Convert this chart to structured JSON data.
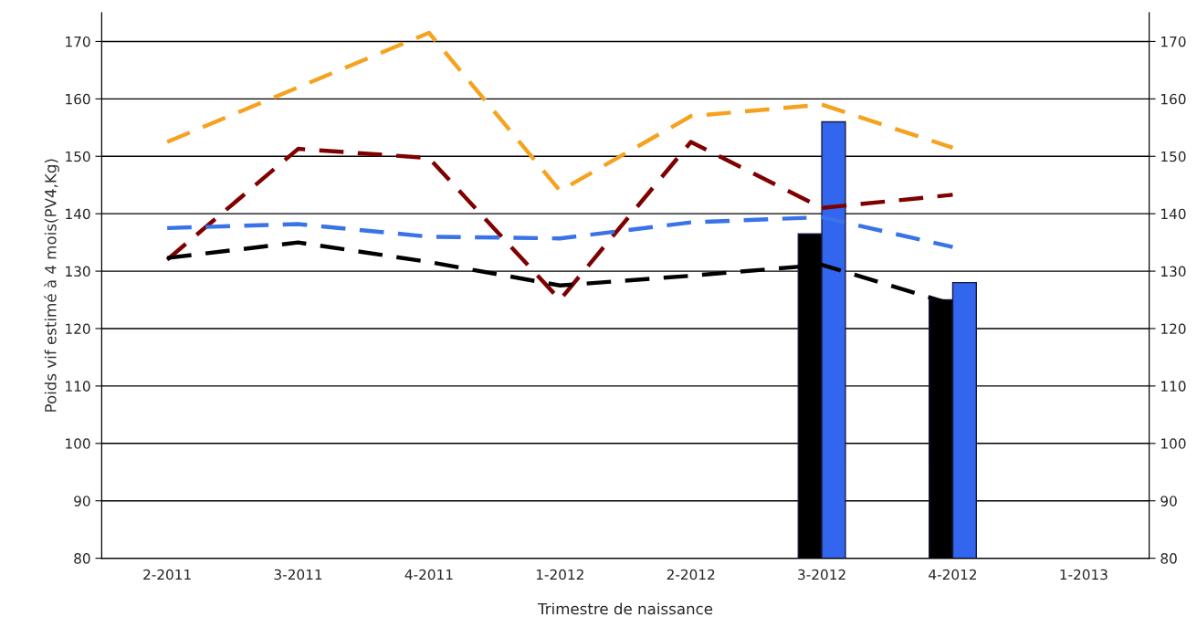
{
  "chart_data": {
    "type": "bar",
    "xlabel": "Trimestre de naissance",
    "ylabel": "Poids vif estimé à 4 mois(PV4,Kg)",
    "categories": [
      "2-2011",
      "3-2011",
      "4-2011",
      "1-2012",
      "2-2012",
      "3-2012",
      "4-2012",
      "1-2013"
    ],
    "series": [
      {
        "color": "#000000",
        "values": [
          null,
          null,
          null,
          null,
          null,
          136.5,
          125,
          null
        ]
      },
      {
        "color": "#3366ee",
        "values": [
          null,
          null,
          null,
          null,
          null,
          156,
          128,
          null
        ]
      },
      {
        "type": "line",
        "color": "#f5a31f",
        "values": [
          152.5,
          162,
          171.5,
          144,
          157,
          159,
          151.5,
          null
        ]
      },
      {
        "type": "line",
        "color": "#7f0000",
        "values": [
          132,
          151.3,
          149.7,
          125,
          152.5,
          141,
          143.3,
          null
        ]
      },
      {
        "type": "line",
        "color": "#3a72e8",
        "values": [
          137.5,
          138.2,
          136,
          135.7,
          138.5,
          139.4,
          134.2,
          null
        ]
      },
      {
        "type": "line",
        "color": "#000000",
        "values": [
          132.3,
          135,
          131.6,
          127.5,
          129.2,
          131.1,
          124.2,
          null
        ]
      }
    ],
    "ylim": [
      80,
      175
    ],
    "yticks": [
      80,
      90,
      100,
      110,
      120,
      130,
      140,
      150,
      160,
      170
    ],
    "y2lim": [
      80,
      175
    ],
    "y2ticks": [
      80,
      90,
      100,
      110,
      120,
      130,
      140,
      150,
      160,
      170
    ],
    "grid": "y",
    "line_style": "dashed",
    "marker": "none",
    "legend": false
  }
}
